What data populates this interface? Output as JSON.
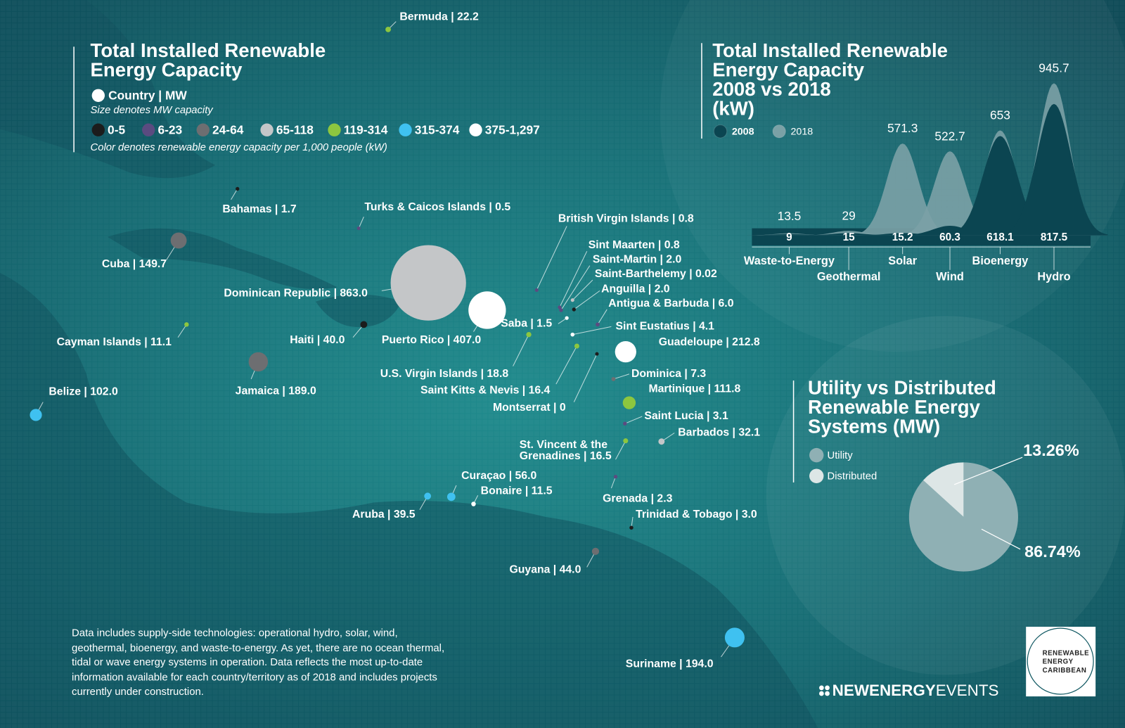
{
  "map": {
    "title": [
      "Total Installed Renewable",
      "Energy Capacity"
    ],
    "legend": {
      "size_key": "Country | MW",
      "size_note": "Size denotes MW capacity",
      "color_bins": [
        {
          "label": "0-5",
          "color": "#1c1c1c"
        },
        {
          "label": "6-23",
          "color": "#5b4b80"
        },
        {
          "label": "24-64",
          "color": "#6d6e71"
        },
        {
          "label": "65-118",
          "color": "#c4c6c8"
        },
        {
          "label": "119-314",
          "color": "#8dc63f"
        },
        {
          "label": "315-374",
          "color": "#3fc1f0"
        },
        {
          "label": "375-1,297",
          "color": "#ffffff"
        }
      ],
      "color_note": "Color denotes renewable energy capacity per 1,000 people (kW)"
    },
    "countries": [
      {
        "label": "Bermuda | 22.2",
        "mw": 22.2,
        "color": "#8dc63f"
      },
      {
        "label": "Bahamas | 1.7",
        "mw": 1.7,
        "color": "#1c1c1c"
      },
      {
        "label": "Turks & Caicos Islands  | 0.5",
        "mw": 0.5,
        "color": "#5b4b80"
      },
      {
        "label": "Cuba | 149.7",
        "mw": 149.7,
        "color": "#6d6e71"
      },
      {
        "label": "Dominican Republic | 863.0",
        "mw": 863.0,
        "color": "#c4c6c8"
      },
      {
        "label": "Puerto Rico | 407.0",
        "mw": 407.0,
        "color": "#ffffff"
      },
      {
        "label": "Haiti | 40.0",
        "mw": 40.0,
        "color": "#1c1c1c"
      },
      {
        "label": "Cayman Islands | 11.1",
        "mw": 11.1,
        "color": "#8dc63f"
      },
      {
        "label": "Jamaica | 189.0",
        "mw": 189.0,
        "color": "#6d6e71"
      },
      {
        "label": "Belize | 102.0",
        "mw": 102.0,
        "color": "#3fc1f0"
      },
      {
        "label": "British Virgin Islands | 0.8",
        "mw": 0.8,
        "color": "#5b4b80"
      },
      {
        "label": "Sint Maarten | 0.8",
        "mw": 0.8,
        "color": "#5b4b80"
      },
      {
        "label": "Saint-Martin | 2.0",
        "mw": 2.0,
        "color": "#5b4b80"
      },
      {
        "label": "Saint-Barthelemy | 0.02",
        "mw": 0.02,
        "color": "#c4c6c8"
      },
      {
        "label": "Anguilla | 2.0",
        "mw": 2.0,
        "color": "#1c1c1c"
      },
      {
        "label": "Antigua & Barbuda | 6.0",
        "mw": 6.0,
        "color": "#5b4b80"
      },
      {
        "label": "Saba | 1.5",
        "mw": 1.5,
        "color": "#ffffff"
      },
      {
        "label": "Sint Eustatius | 4.1",
        "mw": 4.1,
        "color": "#ffffff"
      },
      {
        "label": "Guadeloupe | 212.8",
        "mw": 212.8,
        "color": "#ffffff"
      },
      {
        "label": "U.S. Virgin Islands | 18.8",
        "mw": 18.8,
        "color": "#8dc63f"
      },
      {
        "label": "Saint Kitts & Nevis | 16.4",
        "mw": 16.4,
        "color": "#8dc63f"
      },
      {
        "label": "Montserrat | 0",
        "mw": 0,
        "color": "#1c1c1c"
      },
      {
        "label": "Dominica | 7.3",
        "mw": 7.3,
        "color": "#6d6e71"
      },
      {
        "label": "Martinique | 111.8",
        "mw": 111.8,
        "color": "#8dc63f"
      },
      {
        "label": "Saint Lucia | 3.1",
        "mw": 3.1,
        "color": "#5b4b80"
      },
      {
        "label": "Barbados | 32.1",
        "mw": 32.1,
        "color": "#c4c6c8"
      },
      {
        "label": [
          "St. Vincent & the",
          "Grenadines | 16.5"
        ],
        "mw": 16.5,
        "color": "#8dc63f"
      },
      {
        "label": "Grenada | 2.3",
        "mw": 2.3,
        "color": "#5b4b80"
      },
      {
        "label": "Trinidad & Tobago | 3.0",
        "mw": 3.0,
        "color": "#1c1c1c"
      },
      {
        "label": "Curaçao | 56.0",
        "mw": 56.0,
        "color": "#3fc1f0"
      },
      {
        "label": "Bonaire | 11.5",
        "mw": 11.5,
        "color": "#ffffff"
      },
      {
        "label": "Aruba | 39.5",
        "mw": 39.5,
        "color": "#3fc1f0"
      },
      {
        "label": "Guyana | 44.0",
        "mw": 44.0,
        "color": "#6d6e71"
      },
      {
        "label": "Suriname | 194.0",
        "mw": 194.0,
        "color": "#3fc1f0"
      }
    ]
  },
  "chart_data": [
    {
      "type": "area",
      "title": [
        "Total Installed Renewable",
        "Energy Capacity",
        "2008 vs 2018",
        "(kW)"
      ],
      "categories": [
        "Waste-to-Energy",
        "Geothermal",
        "Solar",
        "Wind",
        "Bioenergy",
        "Hydro"
      ],
      "series": [
        {
          "name": "2008",
          "color": "#0b4551",
          "values": [
            9,
            15,
            15.2,
            60.3,
            618.1,
            817.5
          ]
        },
        {
          "name": "2018",
          "color": "#7ba1a6",
          "values": [
            13.5,
            29,
            571.3,
            522.7,
            653,
            945.7
          ]
        }
      ]
    },
    {
      "type": "pie",
      "title": [
        "Utility vs Distributed",
        "Renewable Energy",
        "Systems (MW)"
      ],
      "categories": [
        "Utility",
        "Distributed"
      ],
      "values": [
        86.74,
        13.26
      ],
      "value_labels": [
        "86.74%",
        "13.26%"
      ],
      "colors": [
        "#8fb0b4",
        "#dde6e6"
      ]
    }
  ],
  "footnote": "Data includes supply-side technologies: operational hydro, solar, wind, geothermal, bioenergy, and waste-to-energy. As yet, there are no ocean thermal, tidal or wave energy systems in operation. Data reflects the most up-to-date information available for each country/territory as of 2018 and includes projects currently under construction.",
  "brand": {
    "name_bold": "NEWENERGY",
    "name_light": "EVENTS",
    "partner": [
      "RENEWABLE",
      "ENERGY",
      "CARIBBEAN"
    ]
  }
}
